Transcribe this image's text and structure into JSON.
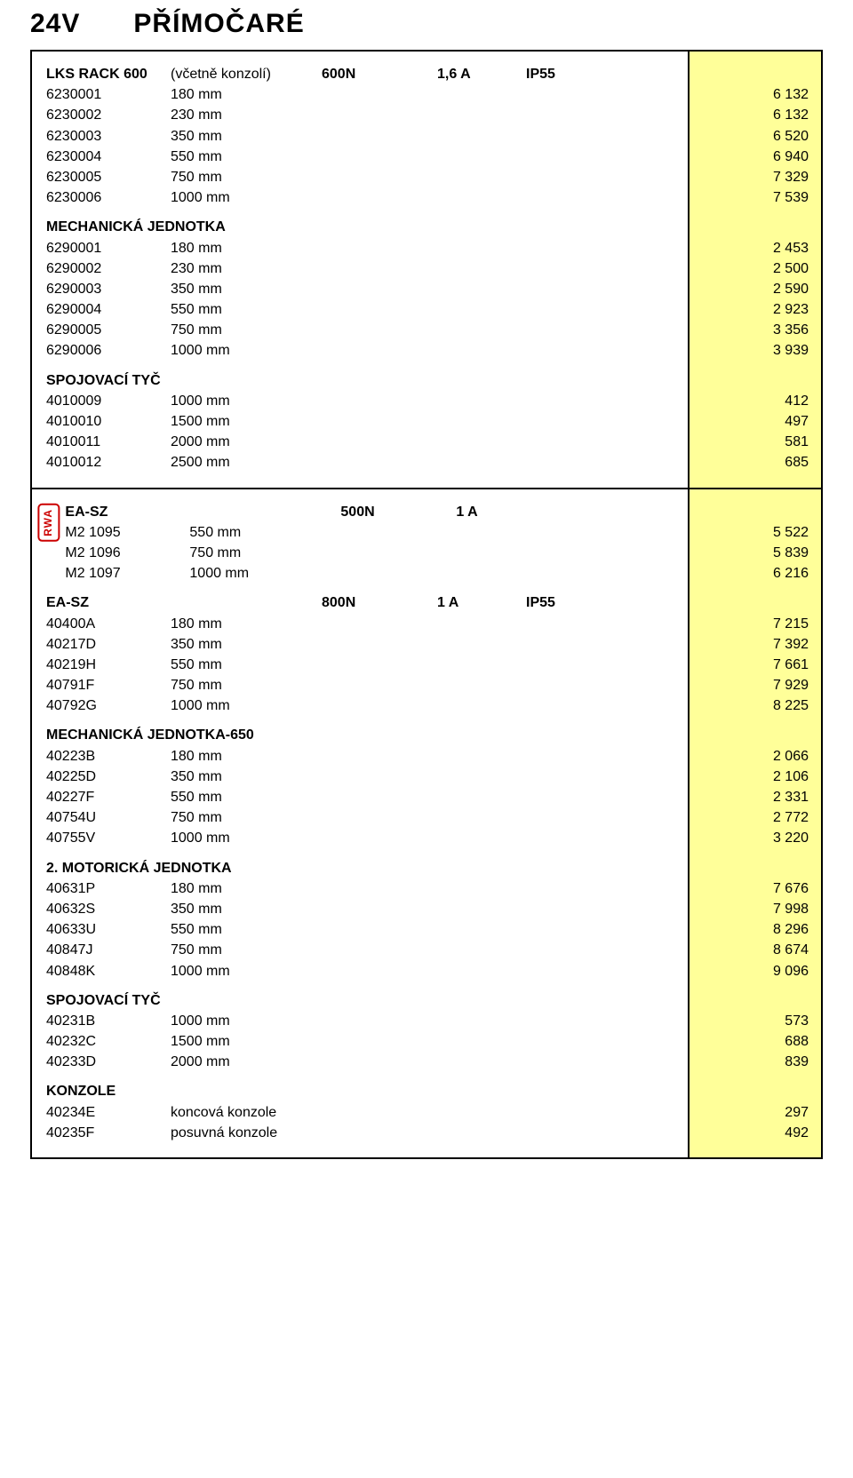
{
  "page": {
    "title_1": "24V",
    "title_2": "PŘÍMOČARÉ"
  },
  "colors": {
    "price_bg": "#ffff99",
    "border": "#000000",
    "rwa": "#cc0000",
    "text": "#000000",
    "background": "#ffffff"
  },
  "fonts": {
    "title_size": 30,
    "body_size": 16,
    "family": "Arial"
  },
  "section1": {
    "lks": {
      "name": "LKS RACK 600",
      "note": "(včetně konzolí)",
      "force": "600N",
      "current": "1,6 A",
      "ip": "IP55",
      "rows": [
        {
          "code": "6230001",
          "dim": "180 mm",
          "price": "6 132"
        },
        {
          "code": "6230002",
          "dim": "230 mm",
          "price": "6 132"
        },
        {
          "code": "6230003",
          "dim": "350 mm",
          "price": "6 520"
        },
        {
          "code": "6230004",
          "dim": "550 mm",
          "price": "6 940"
        },
        {
          "code": "6230005",
          "dim": "750 mm",
          "price": "7 329"
        },
        {
          "code": "6230006",
          "dim": "1000 mm",
          "price": "7 539"
        }
      ]
    },
    "mech": {
      "name": "MECHANICKÁ JEDNOTKA",
      "rows": [
        {
          "code": "6290001",
          "dim": "180 mm",
          "price": "2 453"
        },
        {
          "code": "6290002",
          "dim": "230 mm",
          "price": "2 500"
        },
        {
          "code": "6290003",
          "dim": "350 mm",
          "price": "2 590"
        },
        {
          "code": "6290004",
          "dim": "550 mm",
          "price": "2 923"
        },
        {
          "code": "6290005",
          "dim": "750 mm",
          "price": "3 356"
        },
        {
          "code": "6290006",
          "dim": "1000 mm",
          "price": "3 939"
        }
      ]
    },
    "spoj": {
      "name": "SPOJOVACÍ TYČ",
      "rows": [
        {
          "code": "4010009",
          "dim": "1000 mm",
          "price": "412"
        },
        {
          "code": "4010010",
          "dim": "1500 mm",
          "price": "497"
        },
        {
          "code": "4010011",
          "dim": "2000 mm",
          "price": "581"
        },
        {
          "code": "4010012",
          "dim": "2500 mm",
          "price": "685"
        }
      ]
    }
  },
  "section2": {
    "rwa_label": "RWA",
    "easz1": {
      "name": "EA-SZ",
      "force": "500N",
      "current": "1 A",
      "rows": [
        {
          "code": "M2 1095",
          "dim": "550 mm",
          "price": "5 522"
        },
        {
          "code": "M2 1096",
          "dim": "750 mm",
          "price": "5 839"
        },
        {
          "code": "M2 1097",
          "dim": "1000 mm",
          "price": "6 216"
        }
      ]
    },
    "easz2": {
      "name": "EA-SZ",
      "force": "800N",
      "current": "1 A",
      "ip": "IP55",
      "rows": [
        {
          "code": "40400A",
          "dim": "180 mm",
          "price": "7 215"
        },
        {
          "code": "40217D",
          "dim": "350 mm",
          "price": "7 392"
        },
        {
          "code": "40219H",
          "dim": "550 mm",
          "price": "7 661"
        },
        {
          "code": "40791F",
          "dim": "750 mm",
          "price": "7 929"
        },
        {
          "code": "40792G",
          "dim": "1000 mm",
          "price": "8 225"
        }
      ]
    },
    "mech650": {
      "name": "MECHANICKÁ JEDNOTKA-650",
      "rows": [
        {
          "code": "40223B",
          "dim": "180 mm",
          "price": "2 066"
        },
        {
          "code": "40225D",
          "dim": "350 mm",
          "price": "2 106"
        },
        {
          "code": "40227F",
          "dim": "550 mm",
          "price": "2 331"
        },
        {
          "code": "40754U",
          "dim": "750 mm",
          "price": "2 772"
        },
        {
          "code": "40755V",
          "dim": "1000 mm",
          "price": "3 220"
        }
      ]
    },
    "motor": {
      "name": "2. MOTORICKÁ JEDNOTKA",
      "rows": [
        {
          "code": "40631P",
          "dim": "180 mm",
          "price": "7 676"
        },
        {
          "code": "40632S",
          "dim": "350 mm",
          "price": "7 998"
        },
        {
          "code": "40633U",
          "dim": "550 mm",
          "price": "8 296"
        },
        {
          "code": "40847J",
          "dim": "750 mm",
          "price": "8 674"
        },
        {
          "code": "40848K",
          "dim": "1000 mm",
          "price": "9 096"
        }
      ]
    },
    "spoj": {
      "name": "SPOJOVACÍ TYČ",
      "rows": [
        {
          "code": "40231B",
          "dim": "1000 mm",
          "price": "573"
        },
        {
          "code": "40232C",
          "dim": "1500 mm",
          "price": "688"
        },
        {
          "code": "40233D",
          "dim": "2000 mm",
          "price": "839"
        }
      ]
    },
    "konzole": {
      "name": "KONZOLE",
      "rows": [
        {
          "code": "40234E",
          "dim": "koncová konzole",
          "price": "297"
        },
        {
          "code": "40235F",
          "dim": "posuvná konzole",
          "price": "492"
        }
      ]
    }
  }
}
